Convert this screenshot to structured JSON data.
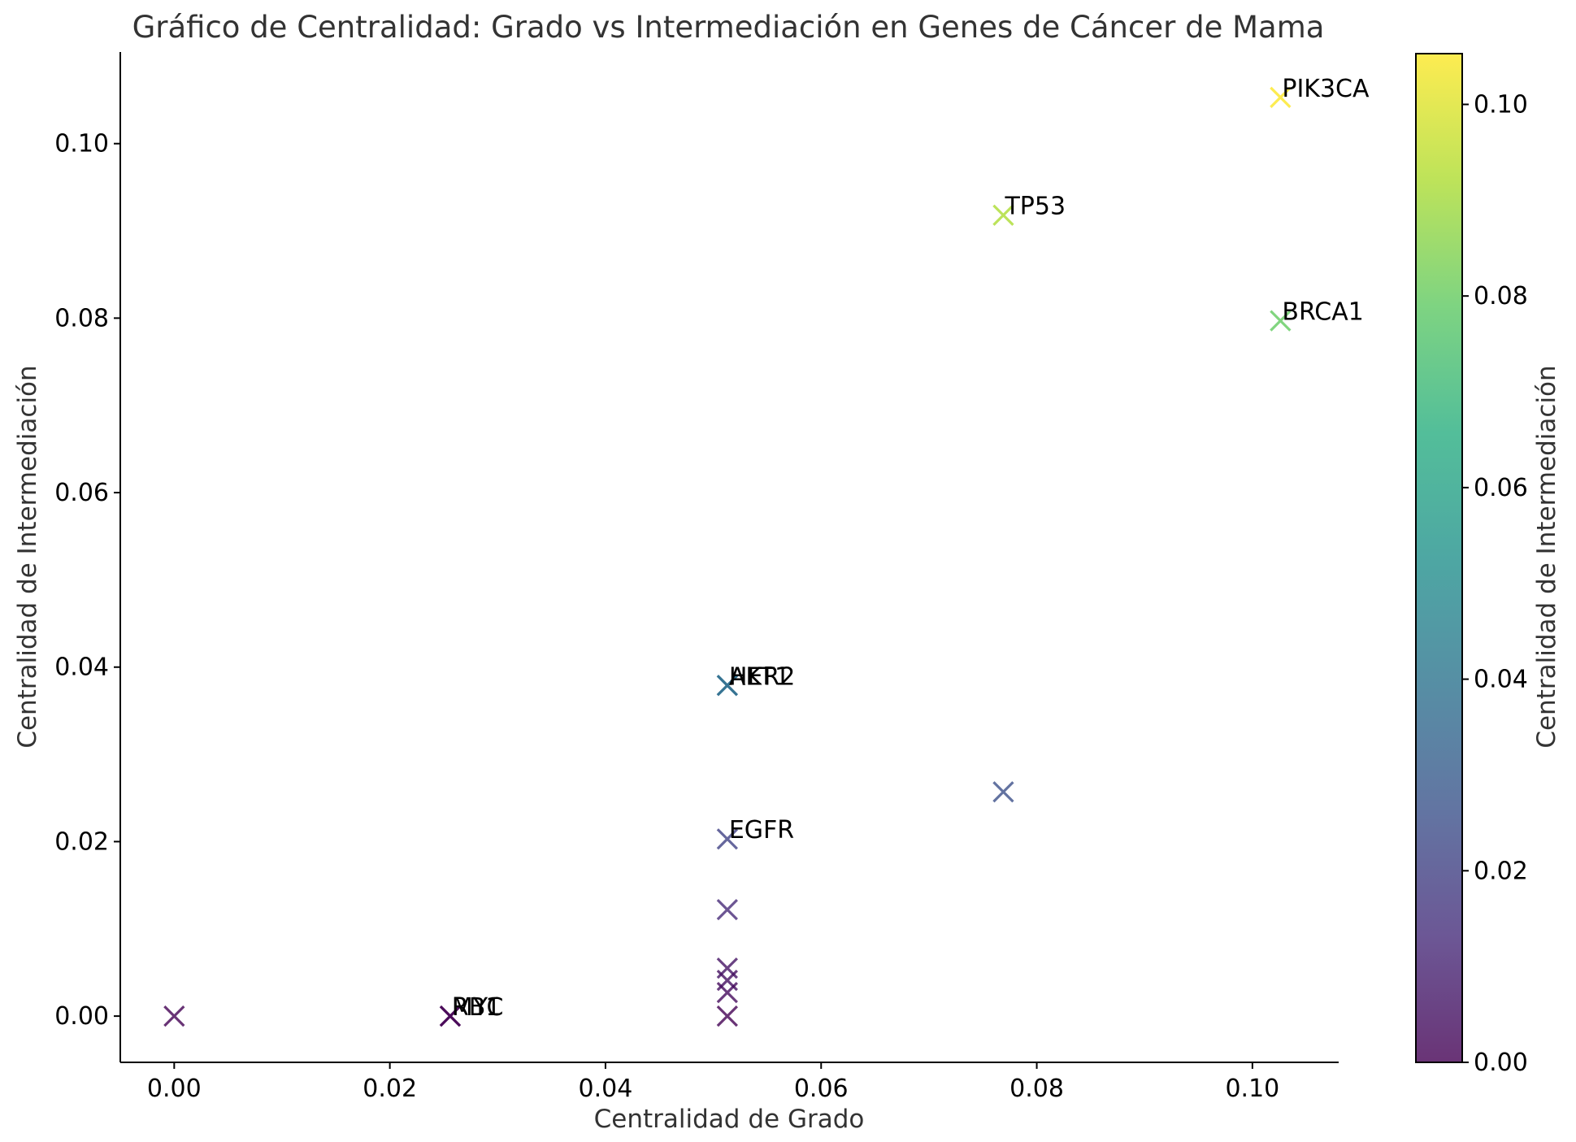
{
  "chart_data": {
    "type": "scatter",
    "title": "Gráfico de Centralidad: Grado vs Intermediación en Genes de Cáncer de Mama",
    "xlabel": "Centralidad de Grado",
    "ylabel": "Centralidad de Intermediación",
    "xlim": [
      -0.005,
      0.108
    ],
    "ylim": [
      -0.0053,
      0.1105
    ],
    "xticks": [
      "0.00",
      "0.02",
      "0.04",
      "0.06",
      "0.08",
      "0.10"
    ],
    "yticks": [
      "0.00",
      "0.02",
      "0.04",
      "0.06",
      "0.08",
      "0.10"
    ],
    "marker": "x",
    "colormap": "viridis",
    "colorbar": {
      "label": "Centralidad de Intermediación",
      "range": [
        0.0,
        0.1053
      ],
      "ticks": [
        "0.00",
        "0.02",
        "0.04",
        "0.06",
        "0.08",
        "0.10"
      ]
    },
    "grid": false,
    "points": [
      {
        "x": 0.1026,
        "y": 0.1053,
        "label": "PIK3CA"
      },
      {
        "x": 0.0769,
        "y": 0.0918,
        "label": "TP53"
      },
      {
        "x": 0.1026,
        "y": 0.0797,
        "label": "BRCA1"
      },
      {
        "x": 0.0513,
        "y": 0.0379,
        "label": "AKT1"
      },
      {
        "x": 0.0513,
        "y": 0.0379,
        "label": "HER2"
      },
      {
        "x": 0.0769,
        "y": 0.0257,
        "label": ""
      },
      {
        "x": 0.0513,
        "y": 0.0203,
        "label": "EGFR"
      },
      {
        "x": 0.0513,
        "y": 0.0122,
        "label": ""
      },
      {
        "x": 0.0513,
        "y": 0.0055,
        "label": ""
      },
      {
        "x": 0.0513,
        "y": 0.0041,
        "label": ""
      },
      {
        "x": 0.0513,
        "y": 0.0027,
        "label": ""
      },
      {
        "x": 0.0513,
        "y": 0.0,
        "label": ""
      },
      {
        "x": 0.0,
        "y": 0.0,
        "label": ""
      },
      {
        "x": 0.0256,
        "y": 0.0,
        "label": "MYC"
      },
      {
        "x": 0.0256,
        "y": 0.0,
        "label": "RB1"
      }
    ]
  }
}
